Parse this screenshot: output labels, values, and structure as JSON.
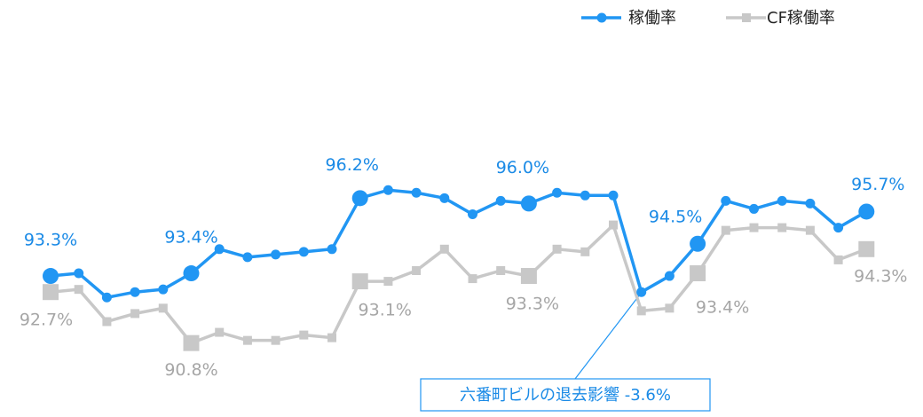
{
  "chart_data": {
    "type": "line",
    "categories": [
      null,
      null,
      null,
      null,
      null,
      null,
      null,
      null,
      null,
      null,
      null,
      null,
      null,
      null,
      null,
      null,
      null,
      null,
      null,
      null,
      null,
      null,
      null,
      null,
      null,
      null,
      null,
      null,
      null,
      null
    ],
    "series": [
      {
        "name": "稼働率",
        "color": "#2196f3",
        "label_color": "#1a8ae6",
        "marker": "circle",
        "values": [
          93.3,
          93.4,
          92.5,
          92.7,
          92.8,
          93.4,
          94.3,
          94.0,
          94.1,
          94.2,
          94.3,
          96.2,
          96.5,
          96.4,
          96.2,
          95.6,
          96.1,
          96.0,
          96.4,
          96.3,
          96.3,
          92.7,
          93.3,
          94.5,
          96.1,
          95.8,
          96.1,
          96.0,
          95.1,
          95.7
        ],
        "value_labels": [
          "93.3%",
          null,
          null,
          null,
          null,
          "93.4%",
          null,
          null,
          null,
          null,
          null,
          "96.2%",
          null,
          null,
          null,
          null,
          null,
          "96.0%",
          null,
          null,
          null,
          null,
          null,
          "94.5%",
          null,
          null,
          null,
          null,
          null,
          "95.7%"
        ]
      },
      {
        "name": "CF稼働率",
        "color": "#c8c8c8",
        "label_color": "#a6a6a6",
        "marker": "square",
        "values": [
          92.7,
          92.8,
          91.6,
          91.9,
          92.1,
          90.8,
          91.2,
          90.9,
          90.9,
          91.1,
          91.0,
          93.1,
          93.1,
          93.5,
          94.3,
          93.2,
          93.5,
          93.3,
          94.3,
          94.2,
          95.2,
          92.0,
          92.1,
          93.4,
          95.0,
          95.1,
          95.1,
          95.0,
          93.9,
          94.3
        ],
        "value_labels": [
          "92.7%",
          null,
          null,
          null,
          null,
          "90.8%",
          null,
          null,
          null,
          null,
          null,
          "93.1%",
          null,
          null,
          null,
          null,
          null,
          "93.3%",
          null,
          null,
          null,
          null,
          null,
          "93.4%",
          null,
          null,
          null,
          null,
          null,
          "94.3%"
        ]
      }
    ],
    "ylim": [
      89.5,
      97.5
    ],
    "annotation": "六番町ビルの退去影響 -3.6%"
  }
}
